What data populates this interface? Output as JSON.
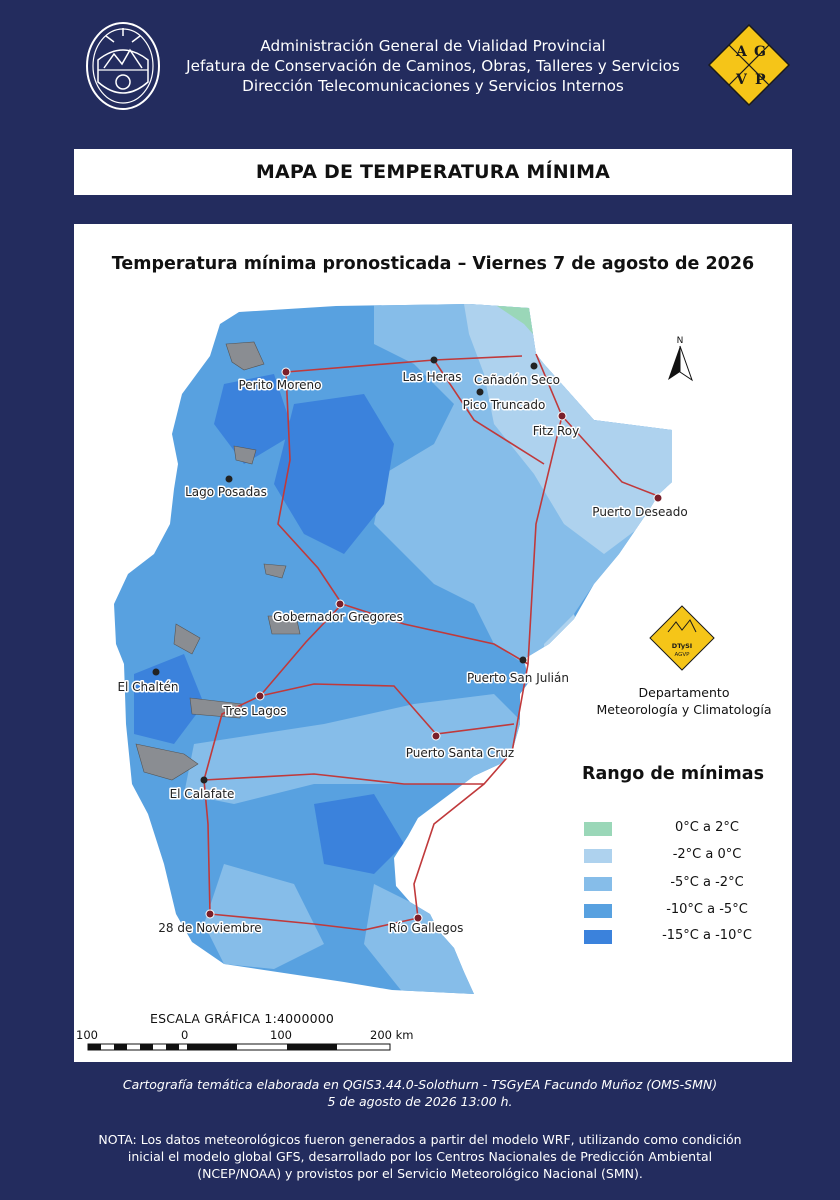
{
  "header": {
    "org_lines": [
      "Administración General de Vialidad Provincial",
      "Jefatura de Conservación de Caminos, Obras, Talleres y Servicios",
      "Dirección Telecomunicaciones y Servicios Internos"
    ],
    "agvp_letters": [
      "A",
      "G",
      "V",
      "P"
    ],
    "agvp_color": "#f5c518"
  },
  "title": "MAPA DE TEMPERATURA MÍNIMA",
  "map": {
    "subtitle": "Temperatura mínima pronosticada – Viernes 7 de agosto de 2026",
    "north_label": "N",
    "cities": [
      "Perito Moreno",
      "Las Heras",
      "Cañadón Seco",
      "Pico Truncado",
      "Fitz Roy",
      "Lago Posadas",
      "Puerto Deseado",
      "Gobernador Gregores",
      "Puerto San Julián",
      "El Chaltén",
      "Tres Lagos",
      "Puerto Santa Cruz",
      "El Calafate",
      "28 de Noviembre",
      "Río Gallegos"
    ],
    "department": {
      "logo_text": "DTySI",
      "logo_subtext": "AGVP",
      "lines": [
        "Departamento",
        "Meteorología y Climatología"
      ]
    },
    "legend": {
      "title": "Rango de mínimas",
      "items": [
        {
          "label": "0°C a 2°C",
          "color": "#9ad7b8"
        },
        {
          "label": "-2°C a 0°C",
          "color": "#aed2ee"
        },
        {
          "label": "-5°C a -2°C",
          "color": "#86bde9"
        },
        {
          "label": "-10°C a -5°C",
          "color": "#58a1e0"
        },
        {
          "label": "-15°C a -10°C",
          "color": "#3b82dc"
        }
      ]
    },
    "scale": {
      "title": "ESCALA GRÁFICA 1:4000000",
      "ticks": [
        "100",
        "0",
        "100",
        "200 km"
      ]
    }
  },
  "footer": {
    "credit_line1": "Cartografía temática elaborada en QGIS3.44.0-Solothurn - TSGyEA Facundo Muñoz (OMS-SMN)",
    "credit_line2": "5 de agosto de 2026 13:00 h.",
    "note_lines": [
      "NOTA: Los datos meteorológicos fueron generados a partir del modelo WRF, utilizando como condición",
      "inicial el modelo global GFS, desarrollado por los Centros Nacionales de Predicción Ambiental",
      "(NCEP/NOAA) y provistos por el Servicio Meteorológico Nacional (SMN)."
    ]
  },
  "colors": {
    "background": "#232c5e",
    "road": "#c0393b",
    "lake": "#8a8d92"
  }
}
